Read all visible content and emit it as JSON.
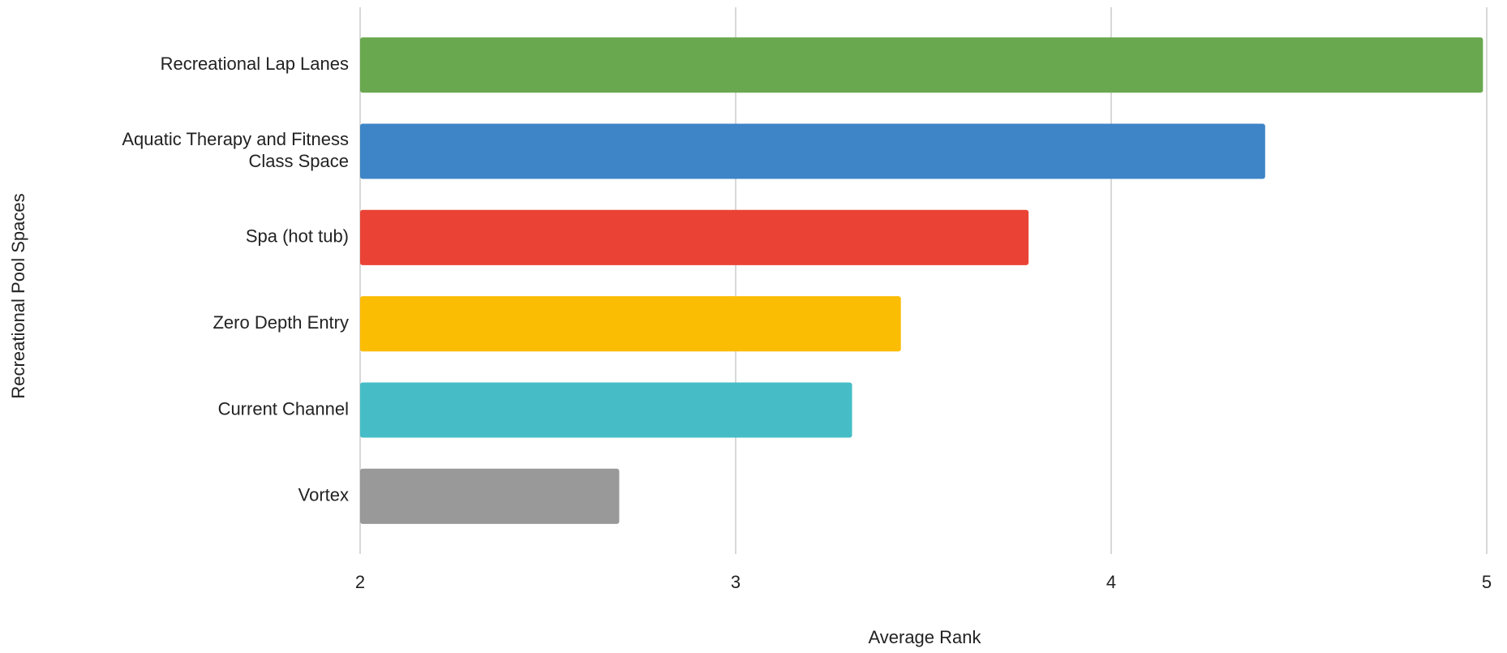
{
  "chart_data": {
    "type": "bar",
    "orientation": "horizontal",
    "x_label": "Average Rank",
    "y_label": "Recreational Pool Spaces",
    "categories": [
      "Recreational Lap Lanes",
      "Aquatic Therapy and Fitness Class Space",
      "Spa (hot tub)",
      "Zero Depth Entry",
      "Current Channel",
      "Vortex"
    ],
    "values": [
      4.99,
      4.41,
      3.78,
      3.44,
      3.31,
      2.69
    ],
    "colors": [
      "#6aa84f",
      "#3d85c6",
      "#ea4335",
      "#fbbc04",
      "#46bdc6",
      "#999999"
    ],
    "xlim": [
      2,
      5
    ],
    "xticks": [
      2,
      3,
      4,
      5
    ],
    "grid": true
  }
}
